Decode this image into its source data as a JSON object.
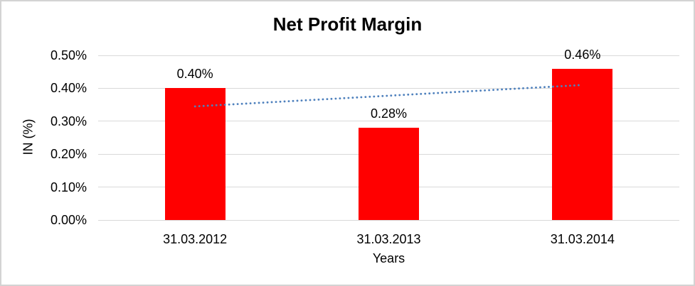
{
  "figure": {
    "background": "#ffffff",
    "border_color": "#d3d3d3"
  },
  "chart_data": {
    "type": "bar",
    "title": "Net Profit Margin",
    "xlabel": "Years",
    "ylabel": "IN (%)",
    "categories": [
      "31.03.2012",
      "31.03.2013",
      "31.03.2014"
    ],
    "values": [
      0.4,
      0.28,
      0.46
    ],
    "data_labels": [
      "0.40%",
      "0.28%",
      "0.46%"
    ],
    "bar_color": "#ff0000",
    "text_color": "#000000",
    "ylim": [
      0,
      0.5
    ],
    "yticks": [
      {
        "value": 0.5,
        "label": "0.50%"
      },
      {
        "value": 0.4,
        "label": "0.40%"
      },
      {
        "value": 0.3,
        "label": "0.30%"
      },
      {
        "value": 0.2,
        "label": "0.20%"
      },
      {
        "value": 0.1,
        "label": "0.10%"
      },
      {
        "value": 0.0,
        "label": "0.00%"
      }
    ],
    "grid": true,
    "gridline_color": "#d9d9d9",
    "legend": false,
    "trendline": {
      "type": "linear",
      "line_style": "dotted",
      "color": "#4f81bd",
      "start_value": 0.345,
      "end_value": 0.41
    }
  }
}
